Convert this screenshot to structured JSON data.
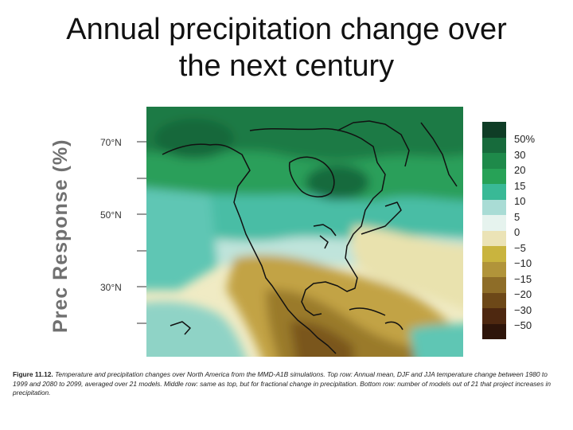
{
  "title": {
    "line1": "Annual precipitation change over",
    "line2": "the next century"
  },
  "figure": {
    "y_axis_label": "Prec Response (%)",
    "latitude_labels": [
      "70°N",
      "50°N",
      "30°N"
    ],
    "legend": {
      "labels": [
        "50%",
        "30",
        "20",
        "15",
        "10",
        "5",
        "0",
        "−5",
        "−10",
        "−15",
        "−20",
        "−30",
        "−50"
      ],
      "colors": [
        "#0f3d26",
        "#176b3c",
        "#1e8a4a",
        "#27a257",
        "#39b996",
        "#a9dcd5",
        "#e6f3ee",
        "#ebe3b6",
        "#c9b43e",
        "#b1943a",
        "#8e6d28",
        "#6d4818",
        "#4e2810",
        "#2e150a"
      ]
    }
  },
  "caption": {
    "label": "Figure 11.12.",
    "text": "Temperature and precipitation changes over North America from the MMD-A1B simulations. Top row: Annual mean, DJF and JJA temperature change between 1980 to 1999 and 2080 to 2099, averaged over 21 models. Middle row: same as top, but for fractional change in precipitation. Bottom row: number of models out of 21 that project increases in precipitation."
  }
}
